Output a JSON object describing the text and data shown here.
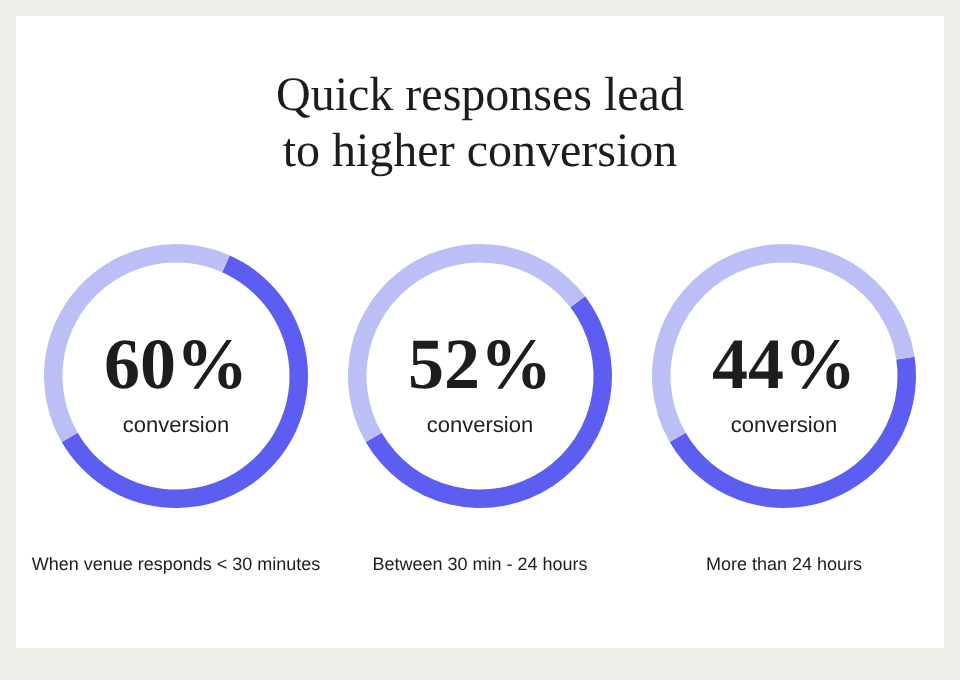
{
  "chart_data": [
    {
      "type": "donut",
      "categories": [
        null,
        null
      ],
      "values": [
        60,
        40
      ],
      "colors": [
        "#5b5ef0",
        "#bcbef6"
      ],
      "annotations": [
        "60%",
        "conversion",
        "When venue responds < 30 minutes"
      ],
      "legend": false
    },
    {
      "type": "donut",
      "title": "Quick responses lead to higher conversion",
      "categories": [
        null,
        null
      ],
      "values": [
        52,
        48
      ],
      "colors": [
        "#5b5ef0",
        "#bcbef6"
      ],
      "annotations": [
        "52%",
        "conversion",
        "Between 30 min - 24 hours"
      ],
      "legend": false
    },
    {
      "type": "donut",
      "categories": [
        null,
        null
      ],
      "values": [
        44,
        56
      ],
      "colors": [
        "#5b5ef0",
        "#bcbef6"
      ],
      "annotations": [
        "44%",
        "conversion",
        "More than 24 hours"
      ],
      "legend": false
    }
  ]
}
